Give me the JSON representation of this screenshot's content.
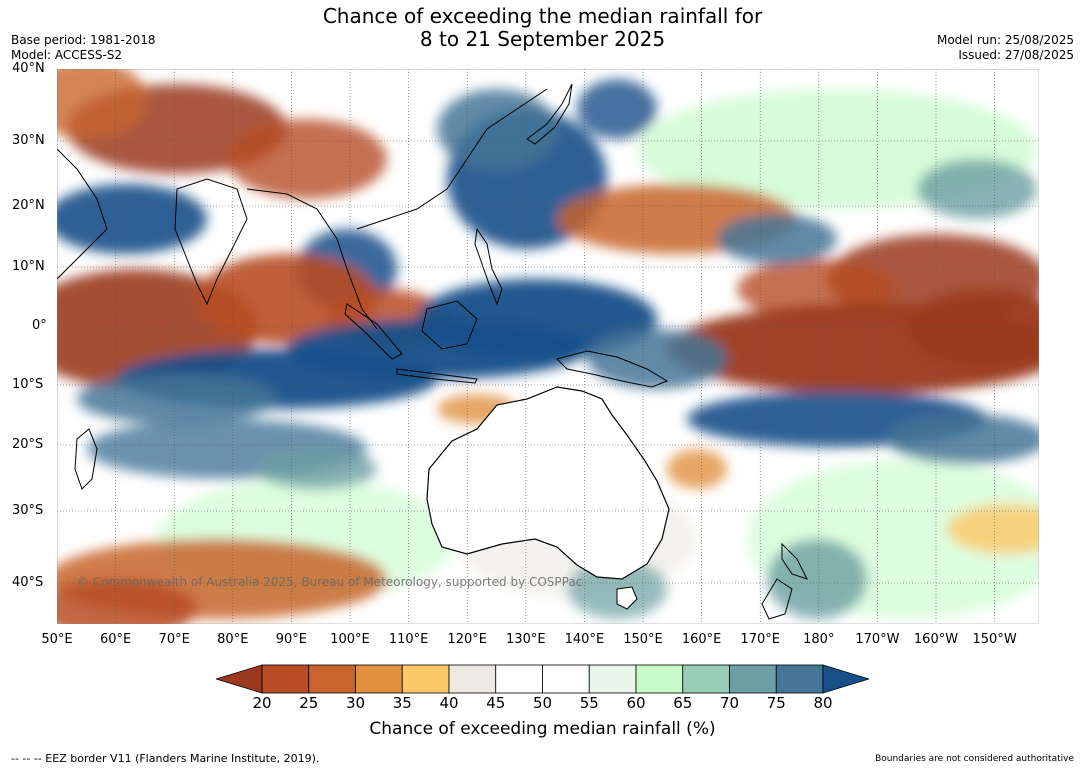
{
  "header": {
    "title_line1": "Chance of exceeding the median rainfall for",
    "title_line2": "8 to 21 September 2025",
    "base_period": "Base period: 1981-2018",
    "model": "Model: ACCESS-S2",
    "model_run": "Model run: 25/08/2025",
    "issued": "Issued: 27/08/2025"
  },
  "map": {
    "lat_labels": [
      "40°N",
      "30°N",
      "20°N",
      "10°N",
      "0°",
      "10°S",
      "20°S",
      "30°S",
      "40°S"
    ],
    "lon_labels": [
      "50°E",
      "60°E",
      "70°E",
      "80°E",
      "90°E",
      "100°E",
      "110°E",
      "120°E",
      "130°E",
      "140°E",
      "150°E",
      "160°E",
      "170°E",
      "180°",
      "170°W",
      "160°W",
      "150°W"
    ],
    "copyright": "© Commonwealth of Australia 2025, Bureau of Meteorology, supported by COSPPac",
    "background_color": "#ffffff"
  },
  "colorbar": {
    "ticks": [
      "20",
      "25",
      "30",
      "35",
      "40",
      "45",
      "50",
      "55",
      "60",
      "65",
      "70",
      "75",
      "80"
    ],
    "colors": [
      "#9b3a1e",
      "#b84d25",
      "#c8652c",
      "#e0903f",
      "#fdc867",
      "#ece9e3",
      "#ffffff",
      "#ffffff",
      "#e8f5e9",
      "#c6fbc9",
      "#99ccb4",
      "#6b9fa3",
      "#457698",
      "#174f89"
    ],
    "title": "Chance of exceeding median rainfall (%)"
  },
  "footer": {
    "eez_note": "--  --  -- EEZ border V11 (Flanders Marine Institute, 2019).",
    "boundaries_note": "Boundaries are not considered authoritative"
  }
}
